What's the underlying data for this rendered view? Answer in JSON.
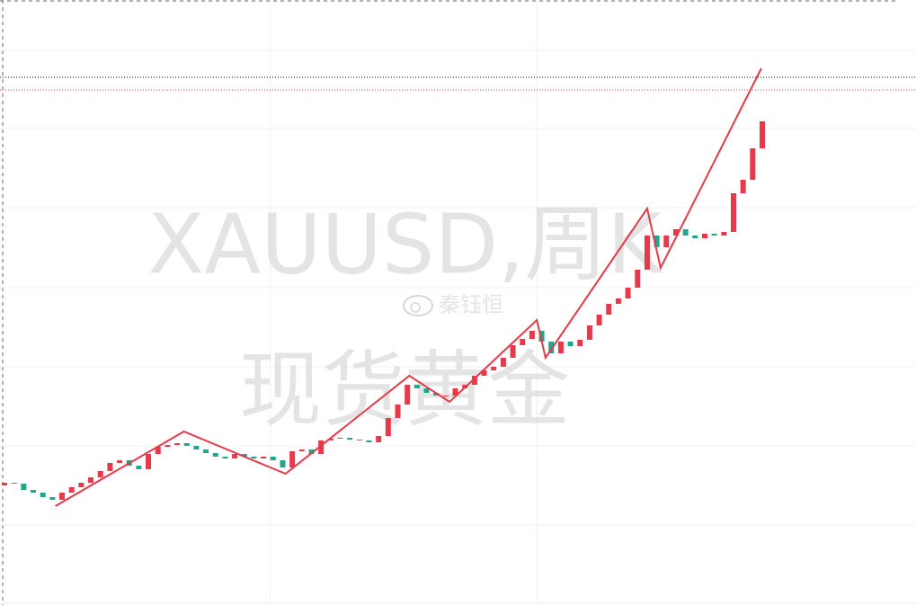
{
  "chart_data": {
    "type": "candlestick",
    "watermark_title": "XAUUSD,周K",
    "watermark_subtitle": "现货黄金",
    "watermark_author": "秦钰恒",
    "xlim": [
      0,
      79
    ],
    "ylim": [
      0,
      670
    ],
    "up_color": "#e8394a",
    "down_color": "#22a68a",
    "open": [
      130,
      133,
      132,
      125,
      122,
      117,
      114,
      122,
      128,
      133,
      139,
      146,
      155,
      158,
      152,
      148,
      165,
      173,
      175,
      177,
      174,
      170,
      166,
      162,
      160,
      165,
      162,
      160,
      162,
      158,
      150,
      168,
      170,
      165,
      180,
      182,
      183,
      181,
      180,
      178,
      185,
      205,
      220,
      242,
      238,
      233,
      230,
      230,
      238,
      242,
      252,
      258,
      262,
      272,
      286,
      293,
      302,
      290,
      277,
      290,
      285,
      292,
      308,
      320,
      332,
      338,
      350,
      370,
      408,
      395,
      408,
      415,
      408,
      405,
      410,
      408,
      412,
      455,
      470,
      505
    ],
    "close": [
      133,
      132,
      125,
      122,
      117,
      114,
      122,
      128,
      133,
      139,
      146,
      155,
      158,
      152,
      148,
      165,
      173,
      175,
      177,
      174,
      170,
      166,
      162,
      160,
      165,
      162,
      160,
      162,
      158,
      150,
      168,
      170,
      165,
      180,
      182,
      183,
      181,
      180,
      178,
      185,
      205,
      220,
      242,
      238,
      233,
      230,
      230,
      238,
      242,
      252,
      258,
      262,
      272,
      286,
      293,
      302,
      290,
      277,
      290,
      285,
      292,
      308,
      320,
      332,
      338,
      350,
      370,
      408,
      395,
      408,
      415,
      408,
      405,
      410,
      408,
      412,
      455,
      470,
      505,
      535
    ],
    "zigzag": {
      "color": "#e8394a",
      "x": [
        5.3,
        18.7,
        29.3,
        42.2,
        46.4,
        55.5,
        56.4,
        67,
        68.4,
        78.9
      ],
      "values": [
        107,
        190,
        143,
        252,
        223,
        314,
        272,
        438,
        372,
        594
      ]
    },
    "price_lines": [
      {
        "value": 584,
        "color": "#000000"
      },
      {
        "value": 570,
        "color": "#e8394a"
      }
    ],
    "ygrid": [
      614,
      527,
      439,
      350,
      262,
      174,
      86
    ],
    "xgrid": [
      27.7,
      55.5
    ],
    "grid": true
  }
}
